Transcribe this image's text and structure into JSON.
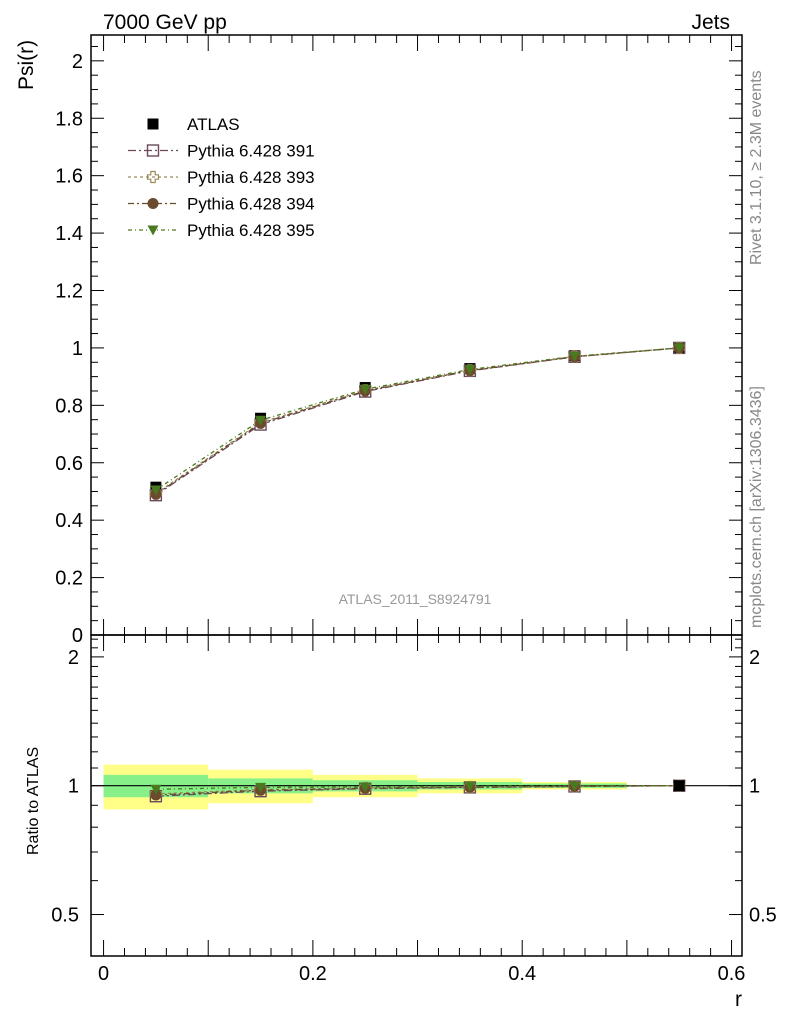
{
  "header": {
    "left": "7000 GeV pp",
    "right": "Jets"
  },
  "side_labels": {
    "rivet": "Rivet 3.1.10, ≥ 2.3M events",
    "mcplots": "mcplots.cern.ch [arXiv:1306.3436]"
  },
  "watermark": "ATLAS_2011_S8924791",
  "chart_data": [
    {
      "type": "line",
      "panel": "main",
      "ylabel": "Psi(r)",
      "xlabel": "",
      "xlim": [
        -0.012,
        0.61
      ],
      "ylim": [
        0,
        2.09
      ],
      "yticks": [
        0,
        0.2,
        0.4,
        0.6,
        0.8,
        1,
        1.2,
        1.4,
        1.6,
        1.8,
        2
      ],
      "ytick_labels": [
        "0",
        "0.2",
        "0.4",
        "0.6",
        "0.8",
        "1",
        "1.2",
        "1.4",
        "1.6",
        "1.8",
        "2"
      ],
      "legend_position": "top-left",
      "x": [
        0.05,
        0.15,
        0.25,
        0.35,
        0.45,
        0.55
      ],
      "series": [
        {
          "name": "ATLAS",
          "marker": "filled-square",
          "color": "#000000",
          "values": [
            0.515,
            0.755,
            0.862,
            0.928,
            0.973,
            1.0
          ]
        },
        {
          "name": "Pythia 6.428 391",
          "marker": "open-square",
          "color": "#6b4a5e",
          "values": [
            0.487,
            0.733,
            0.848,
            0.92,
            0.969,
            1.0
          ]
        },
        {
          "name": "Pythia 6.428 393",
          "marker": "open-cross",
          "color": "#9b8a5a",
          "values": [
            0.493,
            0.74,
            0.852,
            0.922,
            0.97,
            1.0
          ]
        },
        {
          "name": "Pythia 6.428 394",
          "marker": "filled-circle",
          "color": "#6b4a2e",
          "values": [
            0.49,
            0.737,
            0.85,
            0.921,
            0.969,
            1.0
          ]
        },
        {
          "name": "Pythia 6.428 395",
          "marker": "filled-triangle-down",
          "color": "#4a7a1e",
          "values": [
            0.505,
            0.748,
            0.856,
            0.925,
            0.971,
            1.0
          ]
        }
      ]
    },
    {
      "type": "line",
      "panel": "ratio",
      "ylabel": "Ratio to ATLAS",
      "xlabel": "r",
      "xlim": [
        -0.012,
        0.61
      ],
      "ylim": [
        0.4,
        2.25
      ],
      "yticks": [
        0.5,
        1,
        2
      ],
      "ytick_labels": [
        "0.5",
        "1",
        "2"
      ],
      "xticks": [
        0,
        0.2,
        0.4,
        0.6
      ],
      "xtick_labels": [
        "0",
        "0.2",
        "0.4",
        "0.6"
      ],
      "x": [
        0.05,
        0.15,
        0.25,
        0.35,
        0.45,
        0.55
      ],
      "bins": [
        [
          0,
          0.1
        ],
        [
          0.1,
          0.2
        ],
        [
          0.2,
          0.3
        ],
        [
          0.3,
          0.4
        ],
        [
          0.4,
          0.5
        ],
        [
          0.5,
          0.6
        ]
      ],
      "band_stat": [
        0.06,
        0.04,
        0.03,
        0.02,
        0.012,
        0.0
      ],
      "band_total": [
        0.12,
        0.09,
        0.06,
        0.04,
        0.02,
        0.0
      ],
      "band_colors": {
        "stat": "#88f088",
        "total": "#ffff88"
      },
      "series": [
        {
          "name": "Pythia 6.428 391",
          "color": "#6b4a5e",
          "values": [
            0.945,
            0.971,
            0.984,
            0.991,
            0.996,
            1.0
          ]
        },
        {
          "name": "Pythia 6.428 393",
          "color": "#9b8a5a",
          "values": [
            0.957,
            0.98,
            0.988,
            0.993,
            0.997,
            1.0
          ]
        },
        {
          "name": "Pythia 6.428 394",
          "color": "#6b4a2e",
          "values": [
            0.951,
            0.976,
            0.986,
            0.992,
            0.996,
            1.0
          ]
        },
        {
          "name": "Pythia 6.428 395",
          "color": "#4a7a1e",
          "values": [
            0.981,
            0.991,
            0.993,
            0.997,
            0.998,
            1.0
          ]
        }
      ]
    }
  ]
}
